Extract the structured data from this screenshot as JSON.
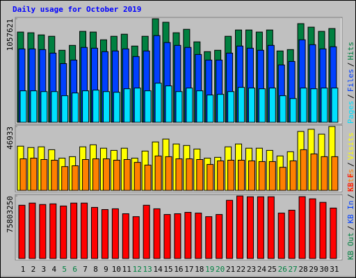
{
  "chart_data": [
    {
      "type": "bar",
      "title": "Daily usage for October 2019",
      "ylim": [
        0,
        1057621
      ],
      "yticks": [
        1057621
      ],
      "legend_separator": "/",
      "series": [
        {
          "name": "Hits",
          "color": "#008040",
          "values": [
            922000,
            915000,
            893000,
            879000,
            736000,
            786000,
            929000,
            922000,
            843000,
            879000,
            900000,
            779000,
            879000,
            1057621,
            1022000,
            915000,
            950000,
            822000,
            722000,
            736000,
            879000,
            943000,
            943000,
            922000,
            943000,
            729000,
            743000,
            1008000,
            972000,
            929000,
            958000
          ]
        },
        {
          "name": "Files",
          "color": "#0040FF",
          "values": [
            750000,
            750000,
            743000,
            707000,
            600000,
            636000,
            765000,
            757000,
            722000,
            729000,
            750000,
            672000,
            729000,
            886000,
            815000,
            786000,
            765000,
            693000,
            636000,
            636000,
            707000,
            779000,
            757000,
            736000,
            786000,
            586000,
            622000,
            843000,
            793000,
            750000,
            772000
          ]
        },
        {
          "name": "Pages",
          "color": "#00E0FF",
          "values": [
            322000,
            322000,
            314000,
            314000,
            272000,
            300000,
            322000,
            329000,
            314000,
            307000,
            343000,
            350000,
            322000,
            400000,
            372000,
            314000,
            350000,
            322000,
            279000,
            286000,
            314000,
            357000,
            350000,
            343000,
            350000,
            272000,
            243000,
            350000,
            343000,
            350000,
            350000
          ]
        }
      ]
    },
    {
      "type": "bar",
      "ylim": [
        0,
        46933
      ],
      "yticks": [
        46933
      ],
      "legend_separator": "/",
      "series": [
        {
          "name": "Visits",
          "color": "#FFFF00",
          "values": [
            32500,
            31500,
            32000,
            29900,
            23700,
            24800,
            32000,
            33500,
            31000,
            29400,
            31000,
            23700,
            28900,
            35600,
            37700,
            34100,
            33000,
            30400,
            23700,
            24300,
            32000,
            34100,
            31000,
            31000,
            29400,
            25300,
            28400,
            43300,
            44900,
            41300,
            46933
          ]
        },
        {
          "name": "Sites",
          "color": "#FF8000",
          "values": [
            23200,
            23700,
            22700,
            22200,
            17500,
            18100,
            22700,
            23200,
            23200,
            22200,
            22700,
            20600,
            18600,
            25300,
            24800,
            23200,
            23200,
            22700,
            19100,
            21700,
            22200,
            22200,
            21700,
            21200,
            21200,
            17000,
            21700,
            29900,
            26800,
            24800,
            24800
          ]
        }
      ]
    },
    {
      "type": "bar",
      "ylim": [
        0,
        75803250
      ],
      "yticks": [
        75803250
      ],
      "legend_separator": "/",
      "categories": [
        "1",
        "2",
        "3",
        "4",
        "5",
        "6",
        "7",
        "8",
        "9",
        "10",
        "11",
        "12",
        "13",
        "14",
        "15",
        "16",
        "17",
        "18",
        "19",
        "20",
        "21",
        "22",
        "23",
        "24",
        "25",
        "26",
        "27",
        "28",
        "29",
        "30",
        "31"
      ],
      "category_colors": [
        "#000000",
        "#000000",
        "#000000",
        "#000000",
        "#008040",
        "#008040",
        "#000000",
        "#000000",
        "#000000",
        "#000000",
        "#000000",
        "#008040",
        "#008040",
        "#000000",
        "#000000",
        "#000000",
        "#000000",
        "#000000",
        "#008040",
        "#008040",
        "#000000",
        "#000000",
        "#000000",
        "#000000",
        "#000000",
        "#008040",
        "#008040",
        "#000000",
        "#000000",
        "#000000",
        "#000000"
      ],
      "series": [
        {
          "name": "KB F",
          "color": "#FF0000",
          "values": [
            64600000,
            67200000,
            65500000,
            66300000,
            63700000,
            67200000,
            67200000,
            62000000,
            59400000,
            60300000,
            54300000,
            50800000,
            64600000,
            60300000,
            53400000,
            54300000,
            56000000,
            55100000,
            50800000,
            53400000,
            70600000,
            75803250,
            74900000,
            74900000,
            74900000,
            55100000,
            58600000,
            75000000,
            72400000,
            68100000,
            61200000
          ]
        },
        {
          "name": "KB In",
          "color": "#0040FF"
        },
        {
          "name": "KB Out",
          "color": "#008040"
        }
      ]
    }
  ]
}
